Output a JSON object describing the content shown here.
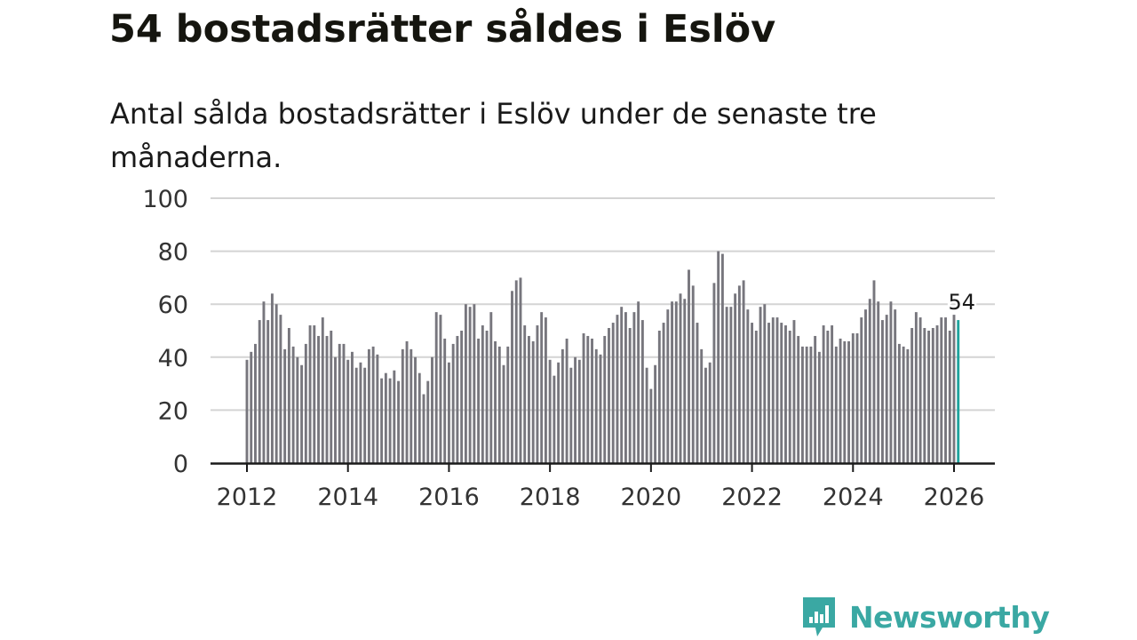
{
  "title": "54 bostadsrätter såldes i Eslöv",
  "subtitle": "Antal sålda bostadsrätter i Eslöv under de senaste tre månaderna.",
  "brand": {
    "name": "Newsworthy",
    "icon": "newsworthy-logo-icon",
    "color": "#3aa8a3"
  },
  "colors": {
    "bar": "#77767d",
    "highlight": "#1fa39d",
    "grid": "#d4d4d4",
    "axis": "#1a1a1a",
    "text": "#1a1a1a"
  },
  "chart_data": {
    "type": "bar",
    "title": "54 bostadsrätter såldes i Eslöv",
    "xlabel": "",
    "ylabel": "",
    "ylim": [
      0,
      100
    ],
    "yticks": [
      0,
      20,
      40,
      60,
      80,
      100
    ],
    "xlim": [
      2012,
      2026.5
    ],
    "xticks": [
      2012,
      2014,
      2016,
      2018,
      2020,
      2022,
      2024,
      2026
    ],
    "grid": true,
    "start": "2012-01",
    "frequency": "monthly",
    "values": [
      39,
      42,
      45,
      54,
      61,
      54,
      64,
      60,
      56,
      43,
      51,
      44,
      40,
      37,
      45,
      52,
      52,
      48,
      55,
      48,
      50,
      40,
      45,
      45,
      39,
      42,
      36,
      38,
      36,
      43,
      44,
      41,
      32,
      34,
      32,
      35,
      31,
      43,
      46,
      43,
      40,
      34,
      26,
      31,
      40,
      57,
      56,
      47,
      38,
      45,
      48,
      50,
      60,
      59,
      60,
      47,
      52,
      50,
      57,
      46,
      44,
      37,
      44,
      65,
      69,
      70,
      52,
      48,
      46,
      52,
      57,
      55,
      39,
      33,
      38,
      43,
      47,
      36,
      40,
      39,
      49,
      48,
      47,
      43,
      41,
      48,
      51,
      53,
      56,
      59,
      57,
      51,
      57,
      61,
      54,
      36,
      28,
      37,
      50,
      53,
      58,
      61,
      61,
      64,
      62,
      73,
      67,
      53,
      43,
      36,
      38,
      68,
      80,
      79,
      59,
      59,
      64,
      67,
      69,
      58,
      53,
      50,
      59,
      60,
      53,
      55,
      55,
      53,
      52,
      50,
      54,
      48,
      44,
      44,
      44,
      48,
      42,
      52,
      50,
      52,
      44,
      47,
      46,
      46,
      49,
      49,
      55,
      58,
      62,
      69,
      61,
      54,
      56,
      61,
      58,
      45,
      44,
      43,
      51,
      57,
      55,
      51,
      50,
      51,
      52,
      55,
      55,
      50,
      56,
      54
    ],
    "highlight": {
      "index": 169,
      "label": "54"
    }
  }
}
